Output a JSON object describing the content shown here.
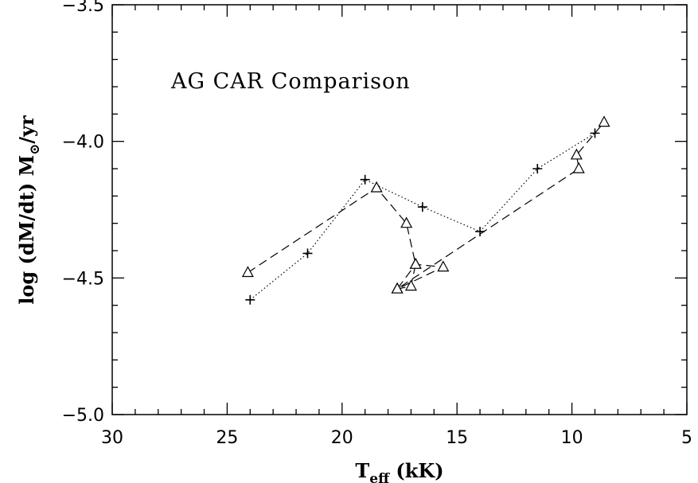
{
  "chart_data": {
    "type": "line",
    "title": "",
    "annotation": "AG CAR Comparison",
    "xlabel": {
      "main": "T",
      "sub": "eff",
      "rest": " (kK)"
    },
    "ylabel": {
      "pre": "log (dM/dt) M",
      "sub": "⊙",
      "post": "/yr"
    },
    "xlim": [
      30,
      5
    ],
    "ylim": [
      -5.0,
      -3.5
    ],
    "x_ticks": [
      30,
      25,
      20,
      15,
      10,
      5
    ],
    "x_tick_labels": [
      "30",
      "25",
      "20",
      "15",
      "10",
      "5"
    ],
    "y_ticks": [
      -5.0,
      -4.5,
      -4.0,
      -3.5
    ],
    "y_tick_labels": [
      "−5.0",
      "−4.5",
      "−4.0",
      "−3.5"
    ],
    "grid": false,
    "series": [
      {
        "marker": "plus",
        "line_style": "dotted",
        "x": [
          24.0,
          21.5,
          19.0,
          16.5,
          14.0,
          11.5,
          9.0
        ],
        "y": [
          -4.58,
          -4.41,
          -4.14,
          -4.24,
          -4.33,
          -4.1,
          -3.97
        ]
      },
      {
        "marker": "triangle",
        "line_style": "dashed",
        "x": [
          24.1,
          18.5,
          17.2,
          16.8,
          17.0,
          17.6,
          15.6,
          16.8,
          17.6,
          9.7,
          9.8,
          8.6
        ],
        "y": [
          -4.48,
          -4.17,
          -4.3,
          -4.45,
          -4.53,
          -4.54,
          -4.46,
          -4.45,
          -4.54,
          -4.1,
          -4.05,
          -3.93
        ]
      }
    ]
  }
}
